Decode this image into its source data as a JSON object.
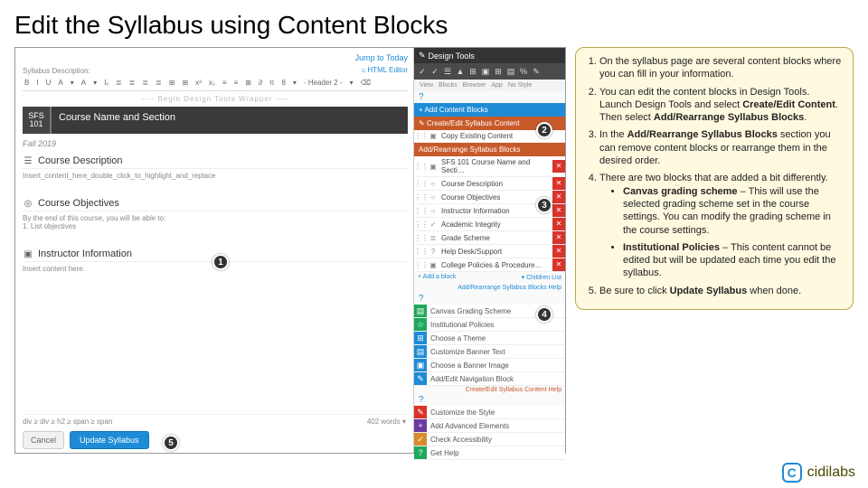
{
  "title": "Edit the Syllabus using Content Blocks",
  "callout": {
    "items": [
      "On the syllabus page are several content blocks where you can fill in your information.",
      "You can edit the content blocks in Design Tools. Launch Design Tools and select <b>Create/Edit Content</b>. Then select <b>Add/Rearrange Syllabus Blocks</b>.",
      "In the <b>Add/Rearrange Syllabus Blocks</b> section you can remove content blocks or rearrange them in the desired order.",
      "There are two blocks that are added a bit differently.",
      "Be sure to click <b>Update Syllabus</b> when done."
    ],
    "subitems": [
      "<b>Canvas grading scheme</b> – This will use the selected grading scheme set in the course settings. You can modify the grading scheme in the course settings.",
      "<b>Institutional Policies</b> – This content cannot be edited but will be updated each time you edit the syllabus."
    ]
  },
  "editor": {
    "jump": "Jump to Today",
    "desc_label": "Syllabus Description:",
    "html_editor": "⌂ HTML Editor",
    "toolbar": [
      "B",
      "I",
      "U",
      "A",
      "▾",
      "A",
      "▾",
      "Iₓ",
      "≣",
      "≣",
      "≣",
      "≣",
      "⊞",
      "⊞",
      "x²",
      "x₂",
      "≡",
      "≡",
      "⊞",
      "∂",
      "π",
      "8",
      "▾",
      "- Header 2 -",
      "▾",
      "⌫"
    ],
    "wrapper": "---- Begin Design Tools Wrapper ----",
    "sfs_top": "SFS",
    "sfs_num": "101",
    "course_name": "Course Name and Section",
    "term": "Fall 2019",
    "blocks": [
      {
        "icon": "☰",
        "title": "Course Description",
        "body": "Insert_content_here_double_click_to_highlight_and_replace"
      },
      {
        "icon": "◎",
        "title": "Course Objectives",
        "body": "By the end of this course, you will be able to:\n1. List objectives"
      },
      {
        "icon": "▣",
        "title": "Instructor Information",
        "body": "Insert content here."
      }
    ],
    "stat_left": "div ≥ div ≥ h2 ≥ span ≥ span",
    "stat_right": "402 words ▾",
    "cancel": "Cancel",
    "update": "Update Syllabus"
  },
  "dt": {
    "head": "Design Tools",
    "icons": [
      "✓",
      "✓",
      "☰",
      "▲",
      "⊞",
      "▣",
      "⊞",
      "▤",
      "%",
      "✎"
    ],
    "sub": [
      "View",
      "Blocks",
      "Browser",
      "App",
      "No Style"
    ],
    "add_content": "+ Add Content Blocks",
    "create_edit": "✎ Create/Edit Syllabus Content",
    "copy": "Copy Existing Content",
    "rearr": "Add/Rearrange Syllabus Blocks",
    "rows": [
      {
        "i": "▣",
        "t": "SFS 101 Course Name and Secti…"
      },
      {
        "i": "○",
        "t": "Course Description"
      },
      {
        "i": "○",
        "t": "Course Objectives"
      },
      {
        "i": "○",
        "t": "Instructor Information"
      },
      {
        "i": "✓",
        "t": "Academic Integrity"
      },
      {
        "i": "≣",
        "t": "Grade Scheme"
      },
      {
        "i": "?",
        "t": "Help Desk/Support"
      },
      {
        "i": "▣",
        "t": "College Policies & Procedure…"
      }
    ],
    "add_block": "+ Add a block",
    "children": "▾ Children List",
    "foot1": "Add/Rearrange Syllabus Blocks Help",
    "actions": [
      {
        "c": "#1ea85a",
        "i": "▤",
        "t": "Canvas Grading Scheme"
      },
      {
        "c": "#1ea85a",
        "i": "☆",
        "t": "Institutional Policies"
      },
      {
        "c": "#1e8bd6",
        "i": "⊞",
        "t": "Choose a Theme"
      },
      {
        "c": "#1e8bd6",
        "i": "▤",
        "t": "Customize Banner Text"
      },
      {
        "c": "#1e8bd6",
        "i": "▣",
        "t": "Choose a Banner Image"
      },
      {
        "c": "#1e8bd6",
        "i": "✎",
        "t": "Add/Edit Navigation Block"
      }
    ],
    "foot2": "Create/Edit Syllabus Content Help",
    "extras": [
      {
        "c": "#d9332a",
        "i": "✎",
        "t": "Customize the Style"
      },
      {
        "c": "#6b3aa0",
        "i": "+",
        "t": "Add Advanced Elements"
      },
      {
        "c": "#d98b2a",
        "i": "✓",
        "t": "Check Accessibility"
      },
      {
        "c": "#1ea85a",
        "i": "?",
        "t": "Get Help"
      }
    ]
  },
  "badges": {
    "1": "1",
    "2": "2",
    "3": "3",
    "4": "4",
    "5": "5"
  },
  "brand": {
    "c": "C",
    "name": "cidilabs"
  }
}
